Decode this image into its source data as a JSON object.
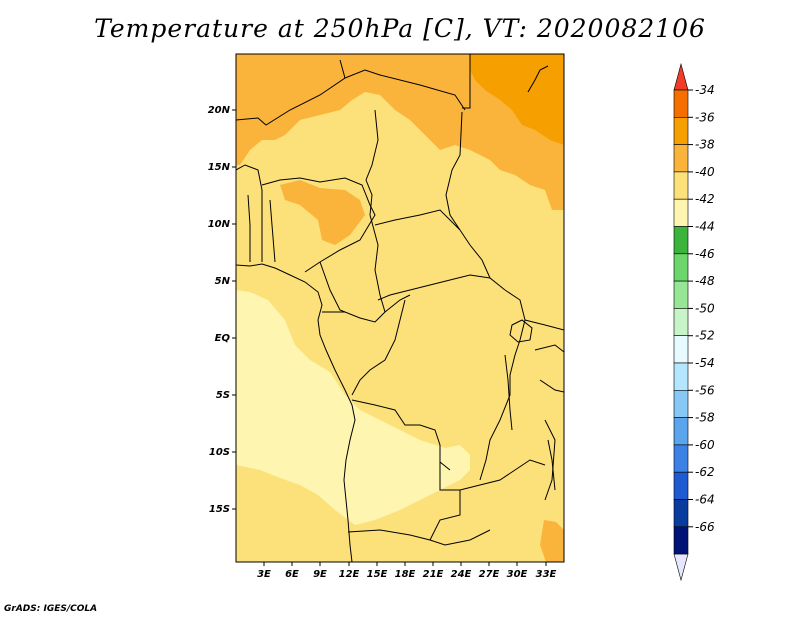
{
  "title": "Temperature at 250hPa [C], VT: 2020082106",
  "credit": "GrADS: IGES/COLA",
  "lat_labels": [
    "20N",
    "15N",
    "10N",
    "5N",
    "EQ",
    "5S",
    "10S",
    "15S"
  ],
  "lon_labels": [
    "3E",
    "6E",
    "9E",
    "12E",
    "15E",
    "18E",
    "21E",
    "24E",
    "27E",
    "30E",
    "33E"
  ],
  "colorbar": {
    "levels": [
      "-34",
      "-36",
      "-38",
      "-40",
      "-42",
      "-44",
      "-46",
      "-48",
      "-50",
      "-52",
      "-54",
      "-56",
      "-58",
      "-60",
      "-62",
      "-64",
      "-66"
    ],
    "colors": [
      "#f03c28",
      "#f56e00",
      "#f5a000",
      "#fab43c",
      "#fce07a",
      "#fdf5b0",
      "#3cb43c",
      "#6cd66c",
      "#96e696",
      "#c8f5c8",
      "#e6faff",
      "#b4e6ff",
      "#87c8f5",
      "#5aa5eb",
      "#3c82e6",
      "#1e5ad2",
      "#0a3ca0",
      "#001478",
      "#e6e6ff"
    ]
  },
  "field_colors": {
    "c38": "#f5a000",
    "c40": "#fab43c",
    "c42": "#fce07a",
    "c44": "#fdf5b0"
  }
}
